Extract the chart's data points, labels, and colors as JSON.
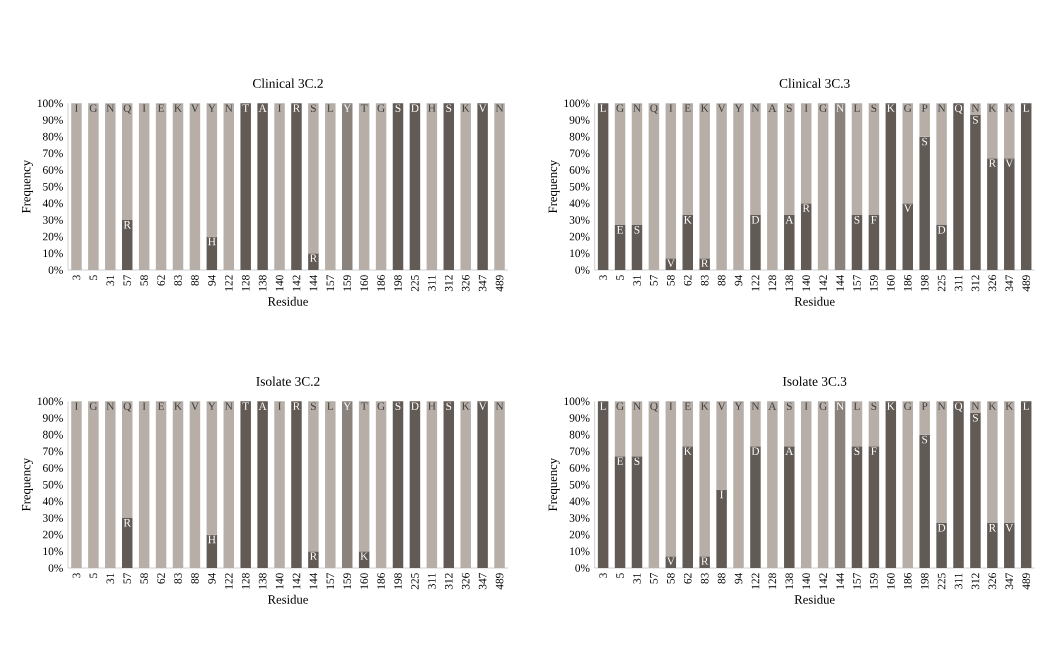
{
  "chart_data": [
    {
      "type": "bar",
      "stacked": true,
      "title": "Clinical 3C.2",
      "xlabel": "Residue",
      "ylabel": "Frequency",
      "categories": [
        "3",
        "5",
        "31",
        "57",
        "58",
        "62",
        "83",
        "88",
        "94",
        "122",
        "128",
        "138",
        "140",
        "142",
        "144",
        "157",
        "159",
        "160",
        "186",
        "198",
        "225",
        "311",
        "312",
        "326",
        "347",
        "489"
      ],
      "series": [
        {
          "colors": [
            "#625a54",
            "#625a54",
            "#625a54",
            "#625a54",
            "#625a54",
            "#625a54",
            "#625a54",
            "#625a54",
            "#625a54",
            "#625a54",
            "#625a54",
            "#625a54",
            "#625a54",
            "#625a54",
            "#625a54",
            "#625a54",
            "#8a827c",
            "#625a54",
            "#625a54",
            "#625a54",
            "#625a54",
            "#625a54",
            "#625a54",
            "#625a54",
            "#625a54",
            "#625a54"
          ],
          "values": [
            0,
            0,
            0,
            30,
            0,
            0,
            0,
            0,
            20,
            0,
            100,
            100,
            0,
            100,
            10,
            0,
            100,
            0,
            0,
            100,
            100,
            0,
            100,
            0,
            100,
            0
          ]
        },
        {
          "color": "#b6aea7",
          "values": [
            100,
            100,
            100,
            70,
            100,
            100,
            100,
            100,
            80,
            100,
            0,
            0,
            100,
            0,
            90,
            100,
            0,
            100,
            100,
            0,
            0,
            100,
            0,
            100,
            0,
            100
          ]
        }
      ],
      "ylim": [
        0,
        100
      ],
      "yticks": [
        {
          "value": 0,
          "label": "0%"
        },
        {
          "value": 10,
          "label": "10%"
        },
        {
          "value": 20,
          "label": "20%"
        },
        {
          "value": 30,
          "label": "30%"
        },
        {
          "value": 40,
          "label": "40%"
        },
        {
          "value": 50,
          "label": "50%"
        },
        {
          "value": 60,
          "label": "60%"
        },
        {
          "value": 70,
          "label": "70%"
        },
        {
          "value": 80,
          "label": "80%"
        },
        {
          "value": 90,
          "label": "90%"
        },
        {
          "value": 100,
          "label": "100%"
        }
      ],
      "annotations": [
        {
          "text": "I",
          "x": "3",
          "y": 100
        },
        {
          "text": "G",
          "x": "5",
          "y": 100
        },
        {
          "text": "N",
          "x": "31",
          "y": 100
        },
        {
          "text": "Q",
          "x": "57",
          "y": 100
        },
        {
          "text": "I",
          "x": "58",
          "y": 100
        },
        {
          "text": "E",
          "x": "62",
          "y": 100
        },
        {
          "text": "K",
          "x": "83",
          "y": 100
        },
        {
          "text": "V",
          "x": "88",
          "y": 100
        },
        {
          "text": "Y",
          "x": "94",
          "y": 100
        },
        {
          "text": "N",
          "x": "122",
          "y": 100
        },
        {
          "text": "T",
          "x": "128",
          "y": 100
        },
        {
          "text": "A",
          "x": "138",
          "y": 100
        },
        {
          "text": "I",
          "x": "140",
          "y": 100
        },
        {
          "text": "R",
          "x": "142",
          "y": 100
        },
        {
          "text": "S",
          "x": "144",
          "y": 100
        },
        {
          "text": "L",
          "x": "157",
          "y": 100
        },
        {
          "text": "Y",
          "x": "159",
          "y": 100
        },
        {
          "text": "T",
          "x": "160",
          "y": 100
        },
        {
          "text": "G",
          "x": "186",
          "y": 100
        },
        {
          "text": "S",
          "x": "198",
          "y": 100
        },
        {
          "text": "D",
          "x": "225",
          "y": 100
        },
        {
          "text": "H",
          "x": "311",
          "y": 100
        },
        {
          "text": "S",
          "x": "312",
          "y": 100
        },
        {
          "text": "K",
          "x": "326",
          "y": 100
        },
        {
          "text": "V",
          "x": "347",
          "y": 100
        },
        {
          "text": "N",
          "x": "489",
          "y": 100
        },
        {
          "text": "R",
          "x": "57",
          "y": 30
        },
        {
          "text": "H",
          "x": "94",
          "y": 20
        },
        {
          "text": "R",
          "x": "144",
          "y": 10
        }
      ]
    },
    {
      "type": "bar",
      "stacked": true,
      "title": "Clinical 3C.3",
      "xlabel": "Residue",
      "ylabel": "Frequency",
      "categories": [
        "3",
        "5",
        "31",
        "57",
        "58",
        "62",
        "83",
        "88",
        "94",
        "122",
        "128",
        "138",
        "140",
        "142",
        "144",
        "157",
        "159",
        "160",
        "186",
        "198",
        "225",
        "311",
        "312",
        "326",
        "347",
        "489"
      ],
      "series": [
        {
          "colors": [
            "#625a54",
            "#625a54",
            "#625a54",
            "#625a54",
            "#625a54",
            "#625a54",
            "#625a54",
            "#625a54",
            "#625a54",
            "#625a54",
            "#625a54",
            "#625a54",
            "#625a54",
            "#625a54",
            "#8a827c",
            "#625a54",
            "#625a54",
            "#625a54",
            "#625a54",
            "#625a54",
            "#625a54",
            "#625a54",
            "#625a54",
            "#625a54",
            "#625a54",
            "#625a54"
          ],
          "values": [
            100,
            27,
            27,
            0,
            7,
            33,
            7,
            0,
            0,
            33,
            0,
            33,
            40,
            0,
            100,
            33,
            33,
            100,
            40,
            80,
            27,
            100,
            93,
            67,
            67,
            100
          ]
        },
        {
          "color": "#b6aea7",
          "values": [
            0,
            73,
            73,
            100,
            93,
            67,
            93,
            100,
            100,
            67,
            100,
            67,
            60,
            100,
            0,
            67,
            67,
            0,
            60,
            20,
            73,
            0,
            7,
            33,
            33,
            0
          ]
        }
      ],
      "ylim": [
        0,
        100
      ],
      "yticks": [
        {
          "value": 0,
          "label": "0%"
        },
        {
          "value": 10,
          "label": "10%"
        },
        {
          "value": 20,
          "label": "20%"
        },
        {
          "value": 30,
          "label": "30%"
        },
        {
          "value": 40,
          "label": "40%"
        },
        {
          "value": 50,
          "label": "50%"
        },
        {
          "value": 60,
          "label": "60%"
        },
        {
          "value": 70,
          "label": "70%"
        },
        {
          "value": 80,
          "label": "80%"
        },
        {
          "value": 90,
          "label": "90%"
        },
        {
          "value": 100,
          "label": "100%"
        }
      ],
      "annotations": [
        {
          "text": "L",
          "x": "3",
          "y": 100
        },
        {
          "text": "G",
          "x": "5",
          "y": 100
        },
        {
          "text": "N",
          "x": "31",
          "y": 100
        },
        {
          "text": "Q",
          "x": "57",
          "y": 100
        },
        {
          "text": "I",
          "x": "58",
          "y": 100
        },
        {
          "text": "E",
          "x": "62",
          "y": 100
        },
        {
          "text": "K",
          "x": "83",
          "y": 100
        },
        {
          "text": "V",
          "x": "88",
          "y": 100
        },
        {
          "text": "Y",
          "x": "94",
          "y": 100
        },
        {
          "text": "N",
          "x": "122",
          "y": 100
        },
        {
          "text": "A",
          "x": "128",
          "y": 100
        },
        {
          "text": "S",
          "x": "138",
          "y": 100
        },
        {
          "text": "I",
          "x": "140",
          "y": 100
        },
        {
          "text": "G",
          "x": "142",
          "y": 100
        },
        {
          "text": "N",
          "x": "144",
          "y": 100
        },
        {
          "text": "L",
          "x": "157",
          "y": 100
        },
        {
          "text": "S",
          "x": "159",
          "y": 100
        },
        {
          "text": "K",
          "x": "160",
          "y": 100
        },
        {
          "text": "G",
          "x": "186",
          "y": 100
        },
        {
          "text": "P",
          "x": "198",
          "y": 100
        },
        {
          "text": "N",
          "x": "225",
          "y": 100
        },
        {
          "text": "Q",
          "x": "311",
          "y": 100
        },
        {
          "text": "N",
          "x": "312",
          "y": 100
        },
        {
          "text": "K",
          "x": "326",
          "y": 100
        },
        {
          "text": "K",
          "x": "347",
          "y": 100
        },
        {
          "text": "L",
          "x": "489",
          "y": 100
        },
        {
          "text": "E",
          "x": "5",
          "y": 27
        },
        {
          "text": "S",
          "x": "31",
          "y": 27
        },
        {
          "text": "V",
          "x": "58",
          "y": 7
        },
        {
          "text": "K",
          "x": "62",
          "y": 33
        },
        {
          "text": "R",
          "x": "83",
          "y": 7
        },
        {
          "text": "D",
          "x": "122",
          "y": 33
        },
        {
          "text": "A",
          "x": "138",
          "y": 33
        },
        {
          "text": "R",
          "x": "140",
          "y": 40
        },
        {
          "text": "S",
          "x": "157",
          "y": 33
        },
        {
          "text": "F",
          "x": "159",
          "y": 33
        },
        {
          "text": "V",
          "x": "186",
          "y": 40
        },
        {
          "text": "S",
          "x": "198",
          "y": 80
        },
        {
          "text": "D",
          "x": "225",
          "y": 27
        },
        {
          "text": "S",
          "x": "312",
          "y": 93
        },
        {
          "text": "R",
          "x": "326",
          "y": 67
        },
        {
          "text": "V",
          "x": "347",
          "y": 67
        }
      ]
    },
    {
      "type": "bar",
      "stacked": true,
      "title": "Isolate 3C.2",
      "xlabel": "Residue",
      "ylabel": "Frequency",
      "categories": [
        "3",
        "5",
        "31",
        "57",
        "58",
        "62",
        "83",
        "88",
        "94",
        "122",
        "128",
        "138",
        "140",
        "142",
        "144",
        "157",
        "159",
        "160",
        "186",
        "198",
        "225",
        "311",
        "312",
        "326",
        "347",
        "489"
      ],
      "series": [
        {
          "colors": [
            "#625a54",
            "#625a54",
            "#625a54",
            "#625a54",
            "#625a54",
            "#625a54",
            "#625a54",
            "#625a54",
            "#625a54",
            "#625a54",
            "#625a54",
            "#625a54",
            "#625a54",
            "#625a54",
            "#625a54",
            "#625a54",
            "#8a827c",
            "#625a54",
            "#625a54",
            "#625a54",
            "#625a54",
            "#625a54",
            "#625a54",
            "#625a54",
            "#625a54",
            "#625a54"
          ],
          "values": [
            0,
            0,
            0,
            30,
            0,
            0,
            0,
            0,
            20,
            0,
            100,
            100,
            0,
            100,
            10,
            0,
            100,
            10,
            0,
            100,
            100,
            0,
            100,
            0,
            100,
            0
          ]
        },
        {
          "color": "#b6aea7",
          "values": [
            100,
            100,
            100,
            70,
            100,
            100,
            100,
            100,
            80,
            100,
            0,
            0,
            100,
            0,
            90,
            100,
            0,
            90,
            100,
            0,
            0,
            100,
            0,
            100,
            0,
            100
          ]
        }
      ],
      "ylim": [
        0,
        100
      ],
      "yticks": [
        {
          "value": 0,
          "label": "0%"
        },
        {
          "value": 10,
          "label": "10%"
        },
        {
          "value": 20,
          "label": "20%"
        },
        {
          "value": 30,
          "label": "30%"
        },
        {
          "value": 40,
          "label": "40%"
        },
        {
          "value": 50,
          "label": "50%"
        },
        {
          "value": 60,
          "label": "60%"
        },
        {
          "value": 70,
          "label": "70%"
        },
        {
          "value": 80,
          "label": "80%"
        },
        {
          "value": 90,
          "label": "90%"
        },
        {
          "value": 100,
          "label": "100%"
        }
      ],
      "annotations": [
        {
          "text": "I",
          "x": "3",
          "y": 100
        },
        {
          "text": "G",
          "x": "5",
          "y": 100
        },
        {
          "text": "N",
          "x": "31",
          "y": 100
        },
        {
          "text": "Q",
          "x": "57",
          "y": 100
        },
        {
          "text": "I",
          "x": "58",
          "y": 100
        },
        {
          "text": "E",
          "x": "62",
          "y": 100
        },
        {
          "text": "K",
          "x": "83",
          "y": 100
        },
        {
          "text": "V",
          "x": "88",
          "y": 100
        },
        {
          "text": "Y",
          "x": "94",
          "y": 100
        },
        {
          "text": "N",
          "x": "122",
          "y": 100
        },
        {
          "text": "T",
          "x": "128",
          "y": 100
        },
        {
          "text": "A",
          "x": "138",
          "y": 100
        },
        {
          "text": "I",
          "x": "140",
          "y": 100
        },
        {
          "text": "R",
          "x": "142",
          "y": 100
        },
        {
          "text": "S",
          "x": "144",
          "y": 100
        },
        {
          "text": "L",
          "x": "157",
          "y": 100
        },
        {
          "text": "Y",
          "x": "159",
          "y": 100
        },
        {
          "text": "T",
          "x": "160",
          "y": 100
        },
        {
          "text": "G",
          "x": "186",
          "y": 100
        },
        {
          "text": "S",
          "x": "198",
          "y": 100
        },
        {
          "text": "D",
          "x": "225",
          "y": 100
        },
        {
          "text": "H",
          "x": "311",
          "y": 100
        },
        {
          "text": "S",
          "x": "312",
          "y": 100
        },
        {
          "text": "K",
          "x": "326",
          "y": 100
        },
        {
          "text": "V",
          "x": "347",
          "y": 100
        },
        {
          "text": "N",
          "x": "489",
          "y": 100
        },
        {
          "text": "R",
          "x": "57",
          "y": 30
        },
        {
          "text": "H",
          "x": "94",
          "y": 20
        },
        {
          "text": "R",
          "x": "144",
          "y": 10
        },
        {
          "text": "K",
          "x": "160",
          "y": 10
        }
      ]
    },
    {
      "type": "bar",
      "stacked": true,
      "title": "Isolate 3C.3",
      "xlabel": "Residue",
      "ylabel": "Frequency",
      "categories": [
        "3",
        "5",
        "31",
        "57",
        "58",
        "62",
        "83",
        "88",
        "94",
        "122",
        "128",
        "138",
        "140",
        "142",
        "144",
        "157",
        "159",
        "160",
        "186",
        "198",
        "225",
        "311",
        "312",
        "326",
        "347",
        "489"
      ],
      "series": [
        {
          "colors": [
            "#625a54",
            "#625a54",
            "#625a54",
            "#625a54",
            "#625a54",
            "#625a54",
            "#625a54",
            "#625a54",
            "#625a54",
            "#625a54",
            "#625a54",
            "#625a54",
            "#625a54",
            "#625a54",
            "#8a827c",
            "#625a54",
            "#625a54",
            "#625a54",
            "#625a54",
            "#625a54",
            "#625a54",
            "#625a54",
            "#625a54",
            "#625a54",
            "#625a54",
            "#625a54"
          ],
          "values": [
            100,
            67,
            67,
            0,
            7,
            73,
            7,
            47,
            0,
            73,
            0,
            73,
            0,
            0,
            100,
            73,
            73,
            100,
            0,
            80,
            27,
            100,
            93,
            27,
            27,
            100
          ]
        },
        {
          "color": "#b6aea7",
          "values": [
            0,
            33,
            33,
            100,
            93,
            27,
            93,
            53,
            100,
            27,
            100,
            27,
            100,
            100,
            0,
            27,
            27,
            0,
            100,
            20,
            73,
            0,
            7,
            73,
            73,
            0
          ]
        }
      ],
      "ylim": [
        0,
        100
      ],
      "yticks": [
        {
          "value": 0,
          "label": "0%"
        },
        {
          "value": 10,
          "label": "10%"
        },
        {
          "value": 20,
          "label": "20%"
        },
        {
          "value": 30,
          "label": "30%"
        },
        {
          "value": 40,
          "label": "40%"
        },
        {
          "value": 50,
          "label": "50%"
        },
        {
          "value": 60,
          "label": "60%"
        },
        {
          "value": 70,
          "label": "70%"
        },
        {
          "value": 80,
          "label": "80%"
        },
        {
          "value": 90,
          "label": "90%"
        },
        {
          "value": 100,
          "label": "100%"
        }
      ],
      "annotations": [
        {
          "text": "L",
          "x": "3",
          "y": 100
        },
        {
          "text": "G",
          "x": "5",
          "y": 100
        },
        {
          "text": "N",
          "x": "31",
          "y": 100
        },
        {
          "text": "Q",
          "x": "57",
          "y": 100
        },
        {
          "text": "I",
          "x": "58",
          "y": 100
        },
        {
          "text": "E",
          "x": "62",
          "y": 100
        },
        {
          "text": "K",
          "x": "83",
          "y": 100
        },
        {
          "text": "V",
          "x": "88",
          "y": 100
        },
        {
          "text": "Y",
          "x": "94",
          "y": 100
        },
        {
          "text": "N",
          "x": "122",
          "y": 100
        },
        {
          "text": "A",
          "x": "128",
          "y": 100
        },
        {
          "text": "S",
          "x": "138",
          "y": 100
        },
        {
          "text": "I",
          "x": "140",
          "y": 100
        },
        {
          "text": "G",
          "x": "142",
          "y": 100
        },
        {
          "text": "N",
          "x": "144",
          "y": 100
        },
        {
          "text": "L",
          "x": "157",
          "y": 100
        },
        {
          "text": "S",
          "x": "159",
          "y": 100
        },
        {
          "text": "K",
          "x": "160",
          "y": 100
        },
        {
          "text": "G",
          "x": "186",
          "y": 100
        },
        {
          "text": "P",
          "x": "198",
          "y": 100
        },
        {
          "text": "N",
          "x": "225",
          "y": 100
        },
        {
          "text": "Q",
          "x": "311",
          "y": 100
        },
        {
          "text": "N",
          "x": "312",
          "y": 100
        },
        {
          "text": "K",
          "x": "326",
          "y": 100
        },
        {
          "text": "K",
          "x": "347",
          "y": 100
        },
        {
          "text": "L",
          "x": "489",
          "y": 100
        },
        {
          "text": "E",
          "x": "5",
          "y": 67
        },
        {
          "text": "S",
          "x": "31",
          "y": 67
        },
        {
          "text": "V",
          "x": "58",
          "y": 7
        },
        {
          "text": "K",
          "x": "62",
          "y": 73
        },
        {
          "text": "R",
          "x": "83",
          "y": 7
        },
        {
          "text": "I",
          "x": "88",
          "y": 47
        },
        {
          "text": "D",
          "x": "122",
          "y": 73
        },
        {
          "text": "A",
          "x": "138",
          "y": 73
        },
        {
          "text": "S",
          "x": "157",
          "y": 73
        },
        {
          "text": "F",
          "x": "159",
          "y": 73
        },
        {
          "text": "S",
          "x": "198",
          "y": 80
        },
        {
          "text": "D",
          "x": "225",
          "y": 27
        },
        {
          "text": "S",
          "x": "312",
          "y": 93
        },
        {
          "text": "R",
          "x": "326",
          "y": 27
        },
        {
          "text": "V",
          "x": "347",
          "y": 27
        }
      ]
    }
  ]
}
